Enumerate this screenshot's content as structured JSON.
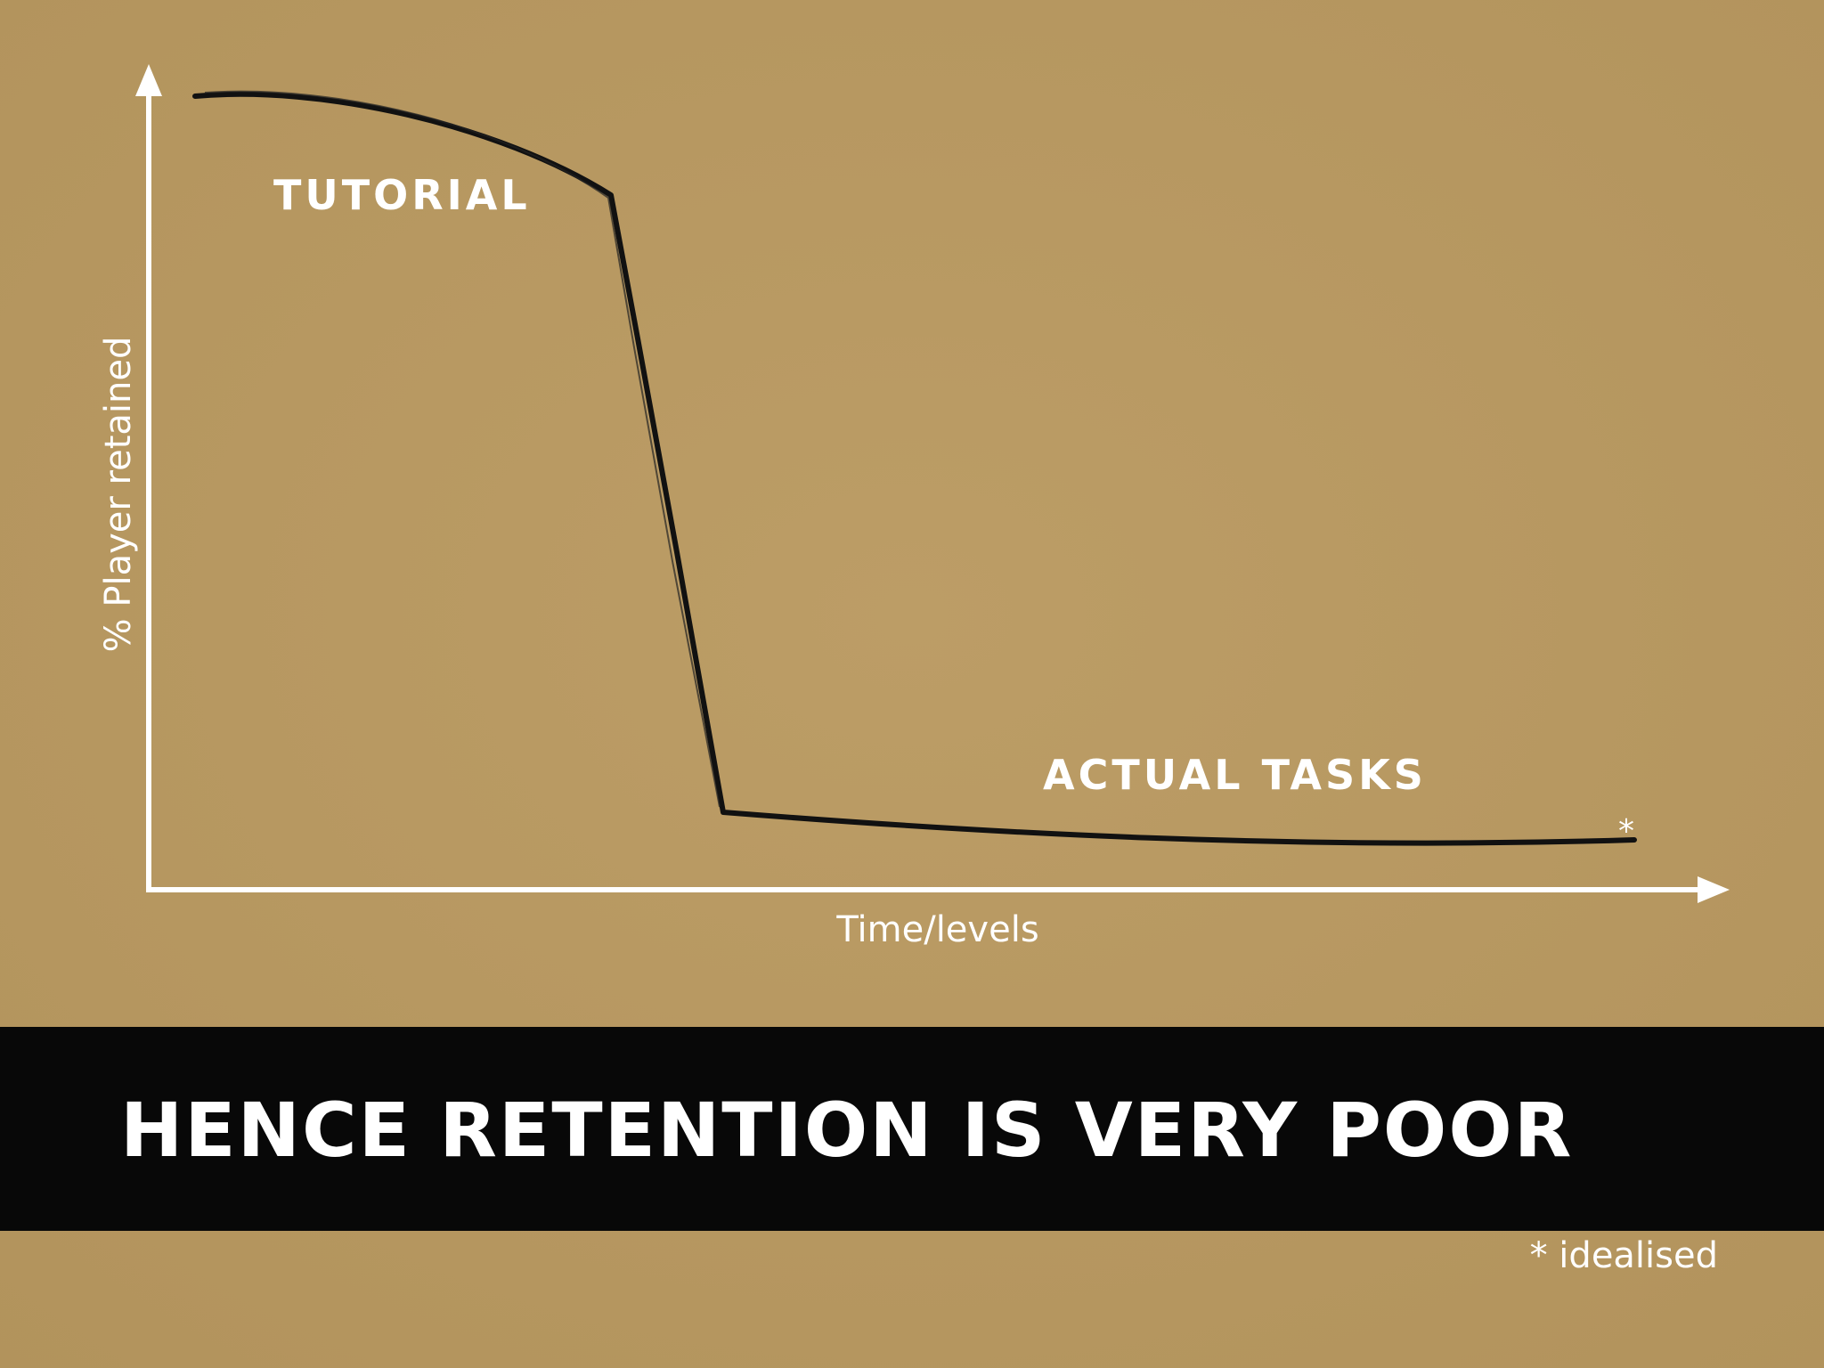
{
  "slide": {
    "y_axis_label": "% Player retained",
    "x_axis_label": "Time/levels",
    "annotations": [
      "TUTORIAL",
      "ACTUAL TASKS",
      "*"
    ],
    "banner": "HENCE RETENTION IS VERY POOR",
    "footnote": "* idealised"
  }
}
